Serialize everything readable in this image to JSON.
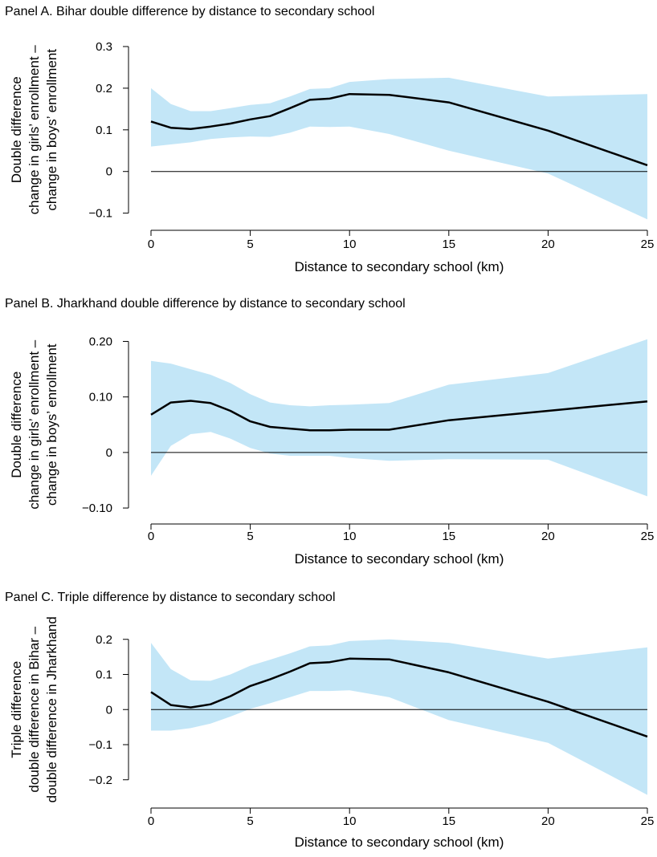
{
  "colors": {
    "band": "#c3e6f7",
    "line": "#000000",
    "zero_line": "#000000",
    "axis": "#000000"
  },
  "chart_data": [
    {
      "type": "line",
      "title": "Panel A. Bihar double difference by distance to secondary school",
      "xlabel": "Distance to secondary school (km)",
      "ylabel": [
        "Double difference",
        "change in girls’ enrollment –",
        "change in boys’ enrollment"
      ],
      "xlim": [
        0,
        25
      ],
      "ylim": [
        -0.12,
        0.3
      ],
      "xticks": [
        0,
        5,
        10,
        15,
        20,
        25
      ],
      "xtick_labels": [
        "0",
        "5",
        "10",
        "15",
        "20",
        "25"
      ],
      "yticks": [
        -0.1,
        0,
        0.1,
        0.2,
        0.3
      ],
      "ytick_labels": [
        "−0.1",
        "0",
        "0.1",
        "0.2",
        "0.3"
      ],
      "zero_line": true,
      "grid": false,
      "x": [
        0,
        1,
        2,
        3,
        4,
        5,
        6,
        7,
        8,
        9,
        10,
        12,
        15,
        20,
        25
      ],
      "series": [
        {
          "values": [
            0.12,
            0.105,
            0.102,
            0.108,
            0.115,
            0.125,
            0.133,
            0.152,
            0.172,
            0.175,
            0.186,
            0.184,
            0.166,
            0.098,
            0.015
          ]
        }
      ],
      "ci_upper": [
        0.2,
        0.162,
        0.145,
        0.145,
        0.152,
        0.16,
        0.164,
        0.18,
        0.198,
        0.2,
        0.215,
        0.222,
        0.225,
        0.18,
        0.186
      ],
      "ci_lower": [
        0.06,
        0.065,
        0.07,
        0.078,
        0.082,
        0.084,
        0.083,
        0.093,
        0.108,
        0.107,
        0.108,
        0.09,
        0.05,
        -0.005,
        -0.115
      ]
    },
    {
      "type": "line",
      "title": "Panel B. Jharkhand double difference by distance to secondary school",
      "xlabel": "Distance to secondary school (km)",
      "ylabel": [
        "Double difference",
        "change in girls’ enrollment –",
        "change in boys’ enrollment"
      ],
      "xlim": [
        0,
        25
      ],
      "ylim": [
        -0.11,
        0.205
      ],
      "xticks": [
        0,
        5,
        10,
        15,
        20,
        25
      ],
      "xtick_labels": [
        "0",
        "5",
        "10",
        "15",
        "20",
        "25"
      ],
      "yticks": [
        -0.1,
        0,
        0.1,
        0.2
      ],
      "ytick_labels": [
        "−0.10",
        "0",
        "0.10",
        "0.20"
      ],
      "zero_line": true,
      "grid": false,
      "x": [
        0,
        1,
        2,
        3,
        4,
        5,
        6,
        7,
        8,
        9,
        10,
        12,
        15,
        20,
        25
      ],
      "series": [
        {
          "values": [
            0.068,
            0.09,
            0.093,
            0.089,
            0.075,
            0.056,
            0.046,
            0.043,
            0.04,
            0.04,
            0.041,
            0.041,
            0.058,
            0.075,
            0.092
          ]
        }
      ],
      "ci_upper": [
        0.165,
        0.16,
        0.15,
        0.14,
        0.125,
        0.105,
        0.09,
        0.085,
        0.083,
        0.085,
        0.086,
        0.089,
        0.122,
        0.143,
        0.204
      ],
      "ci_lower": [
        -0.042,
        0.012,
        0.033,
        0.037,
        0.025,
        0.008,
        -0.002,
        -0.006,
        -0.006,
        -0.006,
        -0.01,
        -0.015,
        -0.012,
        -0.013,
        -0.079
      ]
    },
    {
      "type": "line",
      "title": "Panel C. Triple difference by distance to secondary school",
      "xlabel": "Distance to secondary school (km)",
      "ylabel": [
        "Triple difference",
        "double difference in Bihar –",
        "double difference in Jharkhand"
      ],
      "xlim": [
        0,
        25
      ],
      "ylim": [
        -0.26,
        0.22
      ],
      "xticks": [
        0,
        5,
        10,
        15,
        20,
        25
      ],
      "xtick_labels": [
        "0",
        "5",
        "10",
        "15",
        "20",
        "25"
      ],
      "yticks": [
        -0.2,
        -0.1,
        0,
        0.1,
        0.2
      ],
      "ytick_labels": [
        "−0.2",
        "−0.1",
        "0",
        "0.1",
        "0.2"
      ],
      "zero_line": true,
      "grid": false,
      "x": [
        0,
        1,
        2,
        3,
        4,
        5,
        6,
        7,
        8,
        9,
        10,
        12,
        15,
        20,
        25
      ],
      "series": [
        {
          "values": [
            0.05,
            0.013,
            0.006,
            0.015,
            0.038,
            0.067,
            0.086,
            0.108,
            0.132,
            0.135,
            0.145,
            0.143,
            0.106,
            0.022,
            -0.077
          ]
        }
      ],
      "ci_upper": [
        0.19,
        0.115,
        0.083,
        0.082,
        0.1,
        0.125,
        0.142,
        0.16,
        0.18,
        0.183,
        0.195,
        0.2,
        0.19,
        0.145,
        0.177
      ],
      "ci_lower": [
        -0.06,
        -0.06,
        -0.053,
        -0.04,
        -0.02,
        0.002,
        0.018,
        0.035,
        0.053,
        0.053,
        0.055,
        0.035,
        -0.03,
        -0.095,
        -0.243
      ]
    }
  ]
}
